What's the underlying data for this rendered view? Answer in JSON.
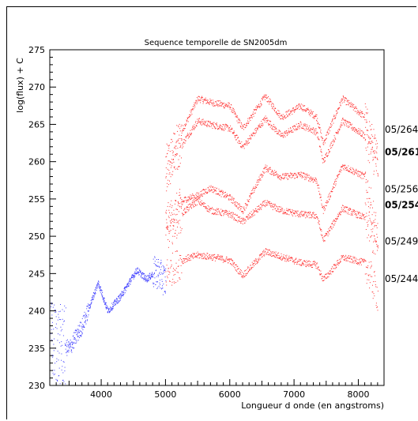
{
  "chart_data": {
    "type": "scatter",
    "title": "Sequence temporelle de SN2005dm",
    "xlabel": "Longueur d onde (en angstroms)",
    "ylabel": "log(flux) + C",
    "xlim": [
      3200,
      8400
    ],
    "ylim": [
      230,
      275
    ],
    "x_ticks": [
      4000,
      5000,
      6000,
      7000,
      8000
    ],
    "y_ticks": [
      230,
      235,
      240,
      245,
      250,
      255,
      260,
      265,
      270,
      275
    ],
    "x_tick_labels": [
      "4000",
      "5000",
      "6000",
      "7000",
      "8000"
    ],
    "y_tick_labels": [
      "230",
      "235",
      "240",
      "245",
      "250",
      "255",
      "260",
      "265",
      "270",
      "275"
    ],
    "grid": false,
    "colors": {
      "red_series": "#ff3030",
      "blue_series": "#4040ff"
    },
    "annotations": [
      {
        "text": "05/264",
        "y": 264.3,
        "bold": false
      },
      {
        "text": "05/261",
        "y": 261.3,
        "bold": true
      },
      {
        "text": "05/256",
        "y": 256.3,
        "bold": false
      },
      {
        "text": "05/254",
        "y": 254.2,
        "bold": true
      },
      {
        "text": "05/249",
        "y": 249.3,
        "bold": false
      },
      {
        "text": "05/244",
        "y": 244.3,
        "bold": false
      }
    ],
    "series": [
      {
        "label": "05/264",
        "color": "#ff3030",
        "x": [
          5000,
          5300,
          5500,
          5700,
          6000,
          6200,
          6550,
          6800,
          7100,
          7350,
          7450,
          7750,
          8100,
          8300
        ],
        "y": [
          260,
          265,
          268.5,
          268,
          267.5,
          264.5,
          268.8,
          266,
          267.5,
          266,
          262.5,
          268.5,
          266,
          260.5
        ]
      },
      {
        "label": "05/261",
        "color": "#ff3030",
        "x": [
          5000,
          5300,
          5500,
          5700,
          6000,
          6200,
          6550,
          6800,
          7100,
          7350,
          7450,
          7750,
          8100,
          8300
        ],
        "y": [
          258,
          263,
          265.5,
          265,
          264.5,
          262,
          265.8,
          263.5,
          265,
          264,
          260,
          265.5,
          263.5,
          259
        ]
      },
      {
        "label": "05/256",
        "color": "#ff3030",
        "x": [
          5000,
          5300,
          5500,
          5700,
          6000,
          6200,
          6550,
          6800,
          7100,
          7350,
          7450,
          7750,
          8100,
          8300
        ],
        "y": [
          252,
          255,
          255.5,
          256.5,
          255.2,
          253.5,
          259.2,
          258,
          258.3,
          257.5,
          253.5,
          259.5,
          258,
          250
        ]
      },
      {
        "label": "05/254",
        "color": "#ff3030",
        "x": [
          5000,
          5300,
          5500,
          5700,
          6000,
          6200,
          6550,
          6800,
          7100,
          7350,
          7450,
          7750,
          8100,
          8300
        ],
        "y": [
          250,
          253.5,
          254.8,
          253.5,
          253,
          252,
          254.5,
          253.5,
          253,
          252.8,
          249.5,
          253.8,
          252.5,
          248
        ]
      },
      {
        "label": "05/249",
        "color": "#ff3030",
        "x": [
          5000,
          5300,
          5500,
          5700,
          6000,
          6200,
          6550,
          6800,
          7100,
          7350,
          7450,
          7750,
          8100,
          8300
        ],
        "y": [
          245,
          247,
          247.5,
          247.3,
          246.8,
          244.8,
          248,
          247.3,
          246.5,
          246.2,
          244.2,
          247.2,
          246.5,
          242
        ]
      },
      {
        "label": "05/244",
        "color": "#4040ff",
        "x": [
          3200,
          3500,
          3700,
          3950,
          4100,
          4300,
          4550,
          4700,
          4850,
          5000
        ],
        "y": [
          236,
          235,
          238,
          243.8,
          240,
          242,
          245.5,
          244.3,
          245.3,
          244
        ]
      }
    ]
  }
}
